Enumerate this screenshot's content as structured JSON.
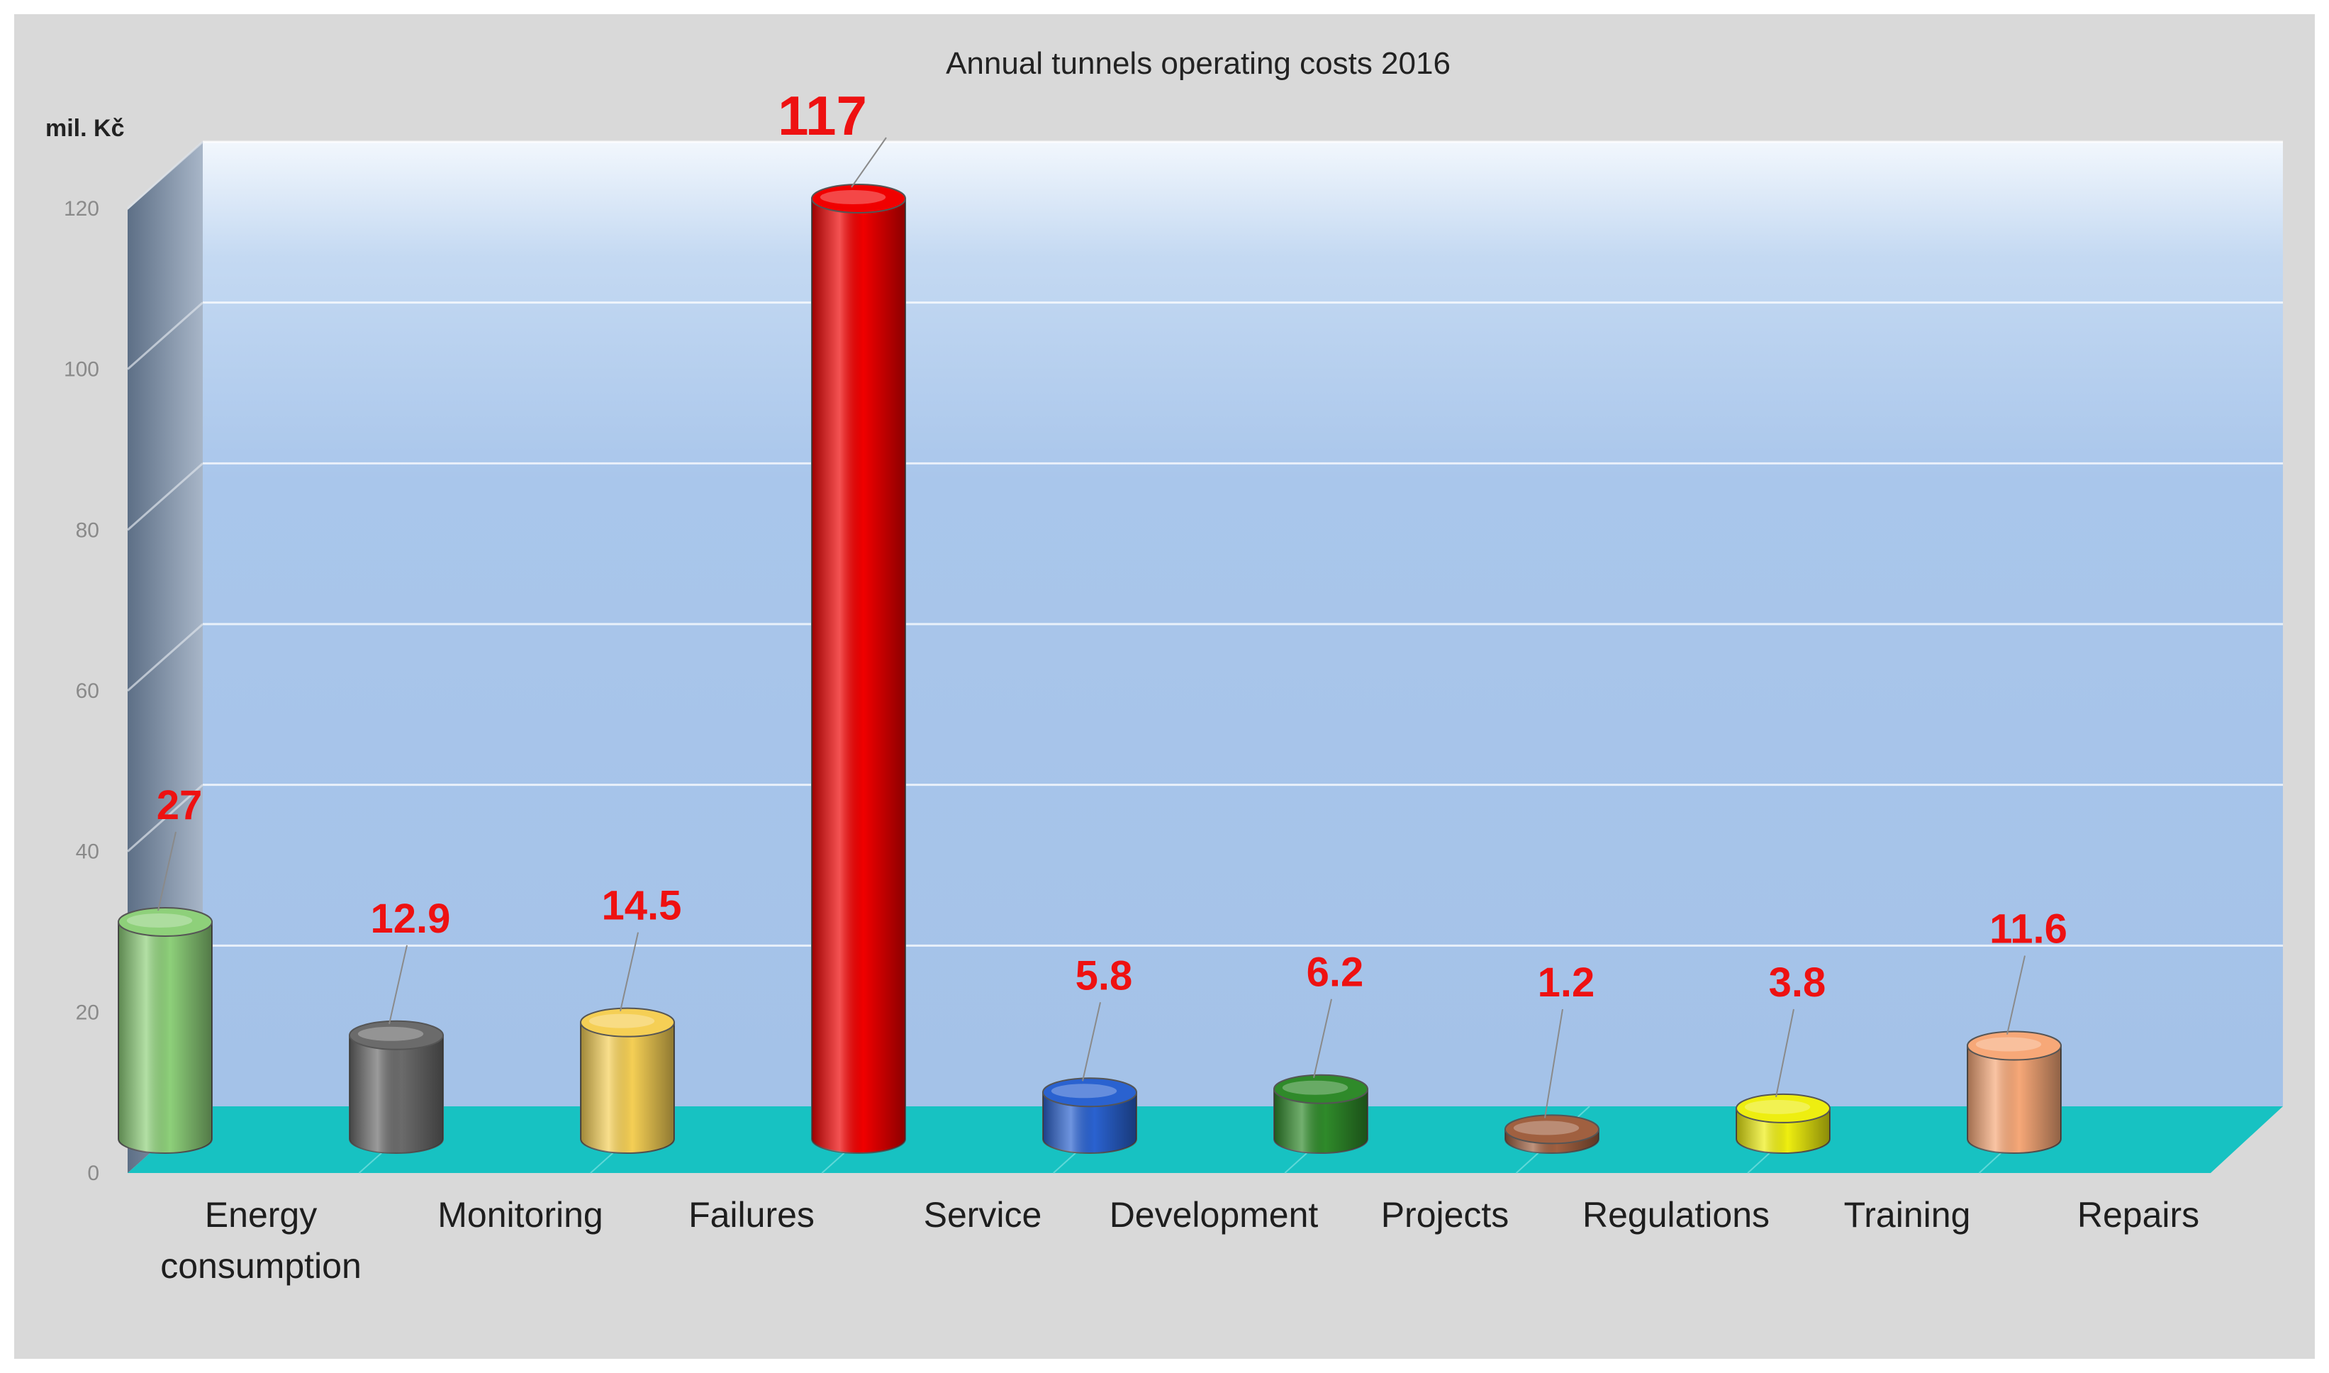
{
  "chart_data": {
    "type": "bar",
    "title": "Annual tunnels operating costs 2016",
    "ylabel": "mil. Kč",
    "xlabel": "",
    "ylim": [
      0,
      120
    ],
    "yticks": [
      0,
      20,
      40,
      60,
      80,
      100,
      120
    ],
    "categories": [
      [
        "Energy",
        "consumption"
      ],
      [
        "Monitoring"
      ],
      [
        "Failures"
      ],
      [
        "Service"
      ],
      [
        "Development"
      ],
      [
        "Projects"
      ],
      [
        "Regulations"
      ],
      [
        "Training"
      ],
      [
        "Repairs"
      ]
    ],
    "values": [
      27,
      12.9,
      14.5,
      117,
      5.8,
      6.2,
      1.2,
      3.8,
      11.6
    ],
    "data_labels": [
      "27",
      "12.9",
      "14.5",
      "117",
      "5.8",
      "6.2",
      "1.2",
      "3.8",
      "11.6"
    ],
    "colors": [
      "#8ed07a",
      "#6b6b6b",
      "#f5cf55",
      "#f00000",
      "#2a62d0",
      "#2f8a2a",
      "#a06040",
      "#eeee10",
      "#f7a878"
    ],
    "grid": true,
    "legend": "none"
  }
}
